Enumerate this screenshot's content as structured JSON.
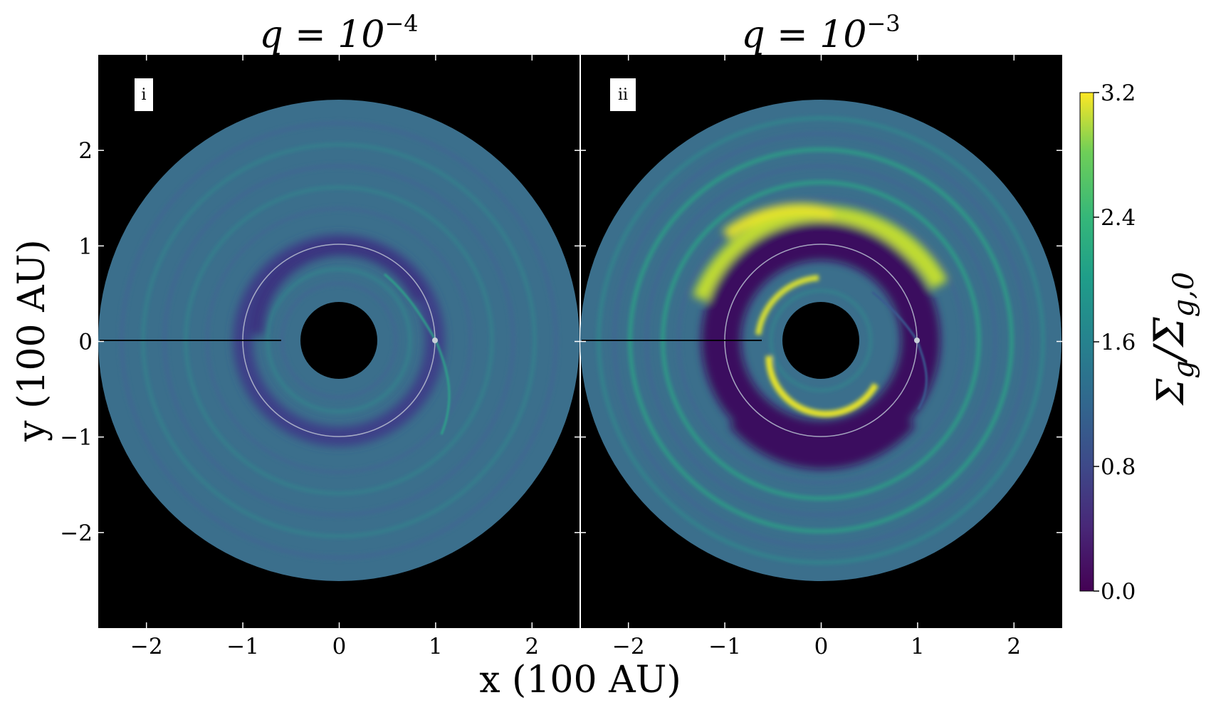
{
  "chart_data": {
    "type": "heatmap",
    "description_units": "x, y in 100 AU; color = surface density ratio",
    "xlabel": "x (100 AU)",
    "ylabel": "y (100 AU)",
    "xlim": [
      -2.5,
      2.5
    ],
    "ylim": [
      -3.0,
      3.0
    ],
    "xticks": [
      -2,
      -1,
      0,
      1,
      2
    ],
    "yticks": [
      -2,
      -1,
      0,
      1,
      2
    ],
    "xtick_labels": [
      "−2",
      "−1",
      "0",
      "1",
      "2"
    ],
    "ytick_labels": [
      "−2",
      "−1",
      "0",
      "1",
      "2"
    ],
    "disk": {
      "r_inner": 0.4,
      "r_outer": 2.5,
      "planet_orbit_r": 1.0,
      "planet_position": [
        1.0,
        0.0
      ]
    },
    "panels": [
      {
        "tag": "i",
        "title": "q = 10",
        "title_exp": "−4",
        "gap_depth": "shallow",
        "vortex": false
      },
      {
        "tag": "ii",
        "title": "q = 10",
        "title_exp": "−3",
        "gap_depth": "deep",
        "vortex": true
      }
    ],
    "colorbar": {
      "label": "Σg/Σg,0",
      "label_main": "Σ",
      "label_sub1": "g",
      "label_slash": "/Σ",
      "label_sub2": "g,0",
      "range": [
        0.0,
        3.2
      ],
      "ticks": [
        0.0,
        0.8,
        1.6,
        2.4,
        3.2
      ],
      "tick_labels": [
        "0.0",
        "0.8",
        "1.6",
        "2.4",
        "3.2"
      ],
      "colormap": "viridis"
    },
    "colors": {
      "background": "#000000",
      "base_disk": "#3b6f8c",
      "gap": "#3d2e78",
      "deep_gap": "#3a0f5e",
      "ring_bright": "#2a9f8a",
      "vortex_peak": "#f0e020",
      "orbit_line": "#b8c0d0"
    }
  }
}
